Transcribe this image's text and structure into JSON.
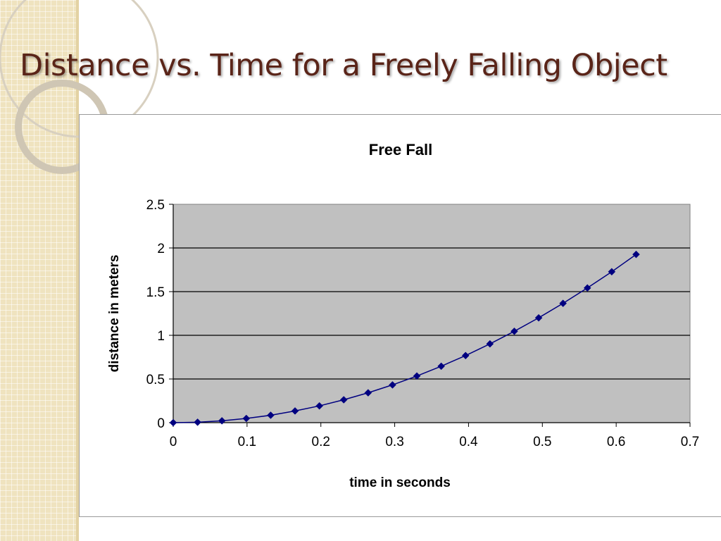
{
  "slide": {
    "title": "Distance vs. Time for a Freely Falling Object"
  },
  "colors": {
    "title": "#5a2418",
    "plot_background": "#c0c0c0",
    "series": "#000080",
    "gridline": "#000000"
  },
  "chart_data": {
    "type": "scatter",
    "title": "Free Fall",
    "xlabel": "time in seconds",
    "ylabel": "distance in meters",
    "xlim": [
      0,
      0.7
    ],
    "ylim": [
      0,
      2.5
    ],
    "x_ticks": [
      "0",
      "0.1",
      "0.2",
      "0.3",
      "0.4",
      "0.5",
      "0.6",
      "0.7"
    ],
    "y_ticks": [
      "0",
      "0.5",
      "1",
      "1.5",
      "2",
      "2.5"
    ],
    "grid": "horizontal",
    "legend": "none",
    "marker": "diamond",
    "connected": true,
    "x": [
      0,
      0.033,
      0.066,
      0.099,
      0.132,
      0.165,
      0.198,
      0.231,
      0.264,
      0.297,
      0.33,
      0.363,
      0.396,
      0.429,
      0.462,
      0.495,
      0.528,
      0.561,
      0.594,
      0.627
    ],
    "y": [
      0,
      0.005,
      0.021,
      0.048,
      0.085,
      0.134,
      0.192,
      0.262,
      0.342,
      0.432,
      0.534,
      0.646,
      0.768,
      0.902,
      1.046,
      1.2,
      1.366,
      1.542,
      1.728,
      1.926
    ]
  }
}
